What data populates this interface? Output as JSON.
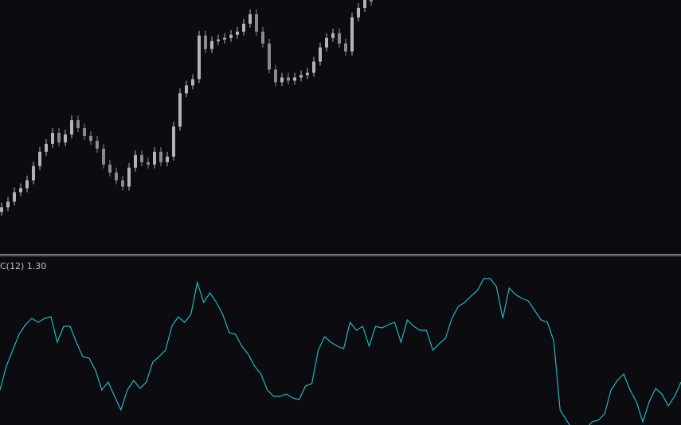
{
  "chart_data": [
    {
      "type": "candlestick",
      "up_color": "#b4b4b8",
      "down_color": "#8a8a90",
      "ylim": [
        0,
        320
      ],
      "open": [
        52,
        58,
        65,
        77,
        82,
        92,
        110,
        128,
        138,
        152,
        140,
        150,
        168,
        158,
        148,
        142,
        132,
        112,
        102,
        92,
        84,
        108,
        124,
        115,
        112,
        128,
        115,
        122,
        160,
        202,
        212,
        220,
        275,
        258,
        268,
        270,
        272,
        276,
        280,
        290,
        302,
        280,
        265,
        232,
        216,
        222,
        218,
        222,
        225,
        228,
        242,
        260,
        272,
        278,
        265,
        255,
        298,
        310,
        320
      ],
      "high": [
        64,
        71,
        83,
        88,
        98,
        116,
        134,
        144,
        158,
        158,
        156,
        174,
        174,
        164,
        154,
        148,
        138,
        118,
        108,
        98,
        114,
        130,
        130,
        121,
        134,
        134,
        128,
        166,
        208,
        218,
        226,
        281,
        281,
        274,
        276,
        278,
        282,
        286,
        296,
        308,
        308,
        286,
        271,
        238,
        228,
        228,
        228,
        231,
        234,
        248,
        266,
        278,
        284,
        284,
        271,
        304,
        316,
        326,
        326
      ],
      "low": [
        47,
        53,
        60,
        72,
        77,
        87,
        105,
        123,
        133,
        135,
        135,
        145,
        153,
        143,
        137,
        127,
        107,
        97,
        87,
        79,
        79,
        103,
        110,
        107,
        107,
        110,
        110,
        117,
        155,
        197,
        207,
        215,
        253,
        253,
        263,
        265,
        267,
        271,
        275,
        285,
        275,
        260,
        227,
        211,
        211,
        213,
        213,
        217,
        220,
        223,
        237,
        255,
        267,
        260,
        250,
        250,
        293,
        305,
        313
      ],
      "close": [
        58,
        65,
        77,
        82,
        92,
        110,
        128,
        138,
        152,
        140,
        150,
        168,
        158,
        148,
        142,
        132,
        112,
        102,
        92,
        84,
        108,
        124,
        115,
        112,
        128,
        115,
        122,
        160,
        202,
        212,
        220,
        275,
        258,
        268,
        270,
        272,
        276,
        280,
        290,
        302,
        280,
        265,
        232,
        216,
        222,
        218,
        222,
        225,
        228,
        242,
        260,
        272,
        278,
        265,
        255,
        298,
        310,
        320,
        318
      ]
    },
    {
      "type": "line",
      "title": "C(12) 1.30",
      "color": "#22b8bc",
      "ylim": [
        -0.94,
        1.18
      ],
      "values": [
        -0.5,
        -0.2,
        0,
        0.2,
        0.32,
        0.4,
        0.35,
        0.4,
        0.42,
        0.1,
        0.3,
        0.3,
        0.1,
        -0.08,
        -0.1,
        -0.25,
        -0.5,
        -0.4,
        -0.58,
        -0.75,
        -0.5,
        -0.38,
        -0.48,
        -0.4,
        -0.15,
        -0.08,
        0,
        0.3,
        0.42,
        0.35,
        0.45,
        0.85,
        0.6,
        0.72,
        0.6,
        0.45,
        0.22,
        0.2,
        0.05,
        -0.05,
        -0.2,
        -0.3,
        -0.5,
        -0.58,
        -0.58,
        -0.55,
        -0.6,
        -0.62,
        -0.45,
        -0.42,
        0,
        0.17,
        0.1,
        0.05,
        0.02,
        0.35,
        0.25,
        0.3,
        0.05,
        0.3,
        0.28,
        0.32,
        0.35,
        0.1,
        0.38,
        0.3,
        0.25,
        0.25,
        0,
        0.08,
        0.15,
        0.4,
        0.55,
        0.6,
        0.68,
        0.75,
        0.9,
        0.9,
        0.8,
        0.4,
        0.78,
        0.7,
        0.65,
        0.62,
        0.5,
        0.38,
        0.35,
        0.12,
        -0.75,
        -0.88,
        -1,
        -1,
        -1,
        -0.9,
        -0.88,
        -0.8,
        -0.5,
        -0.38,
        -0.3,
        -0.5,
        -0.65,
        -0.9,
        -0.65,
        -0.48,
        -0.55,
        -0.7,
        -0.58,
        -0.4
      ]
    }
  ]
}
